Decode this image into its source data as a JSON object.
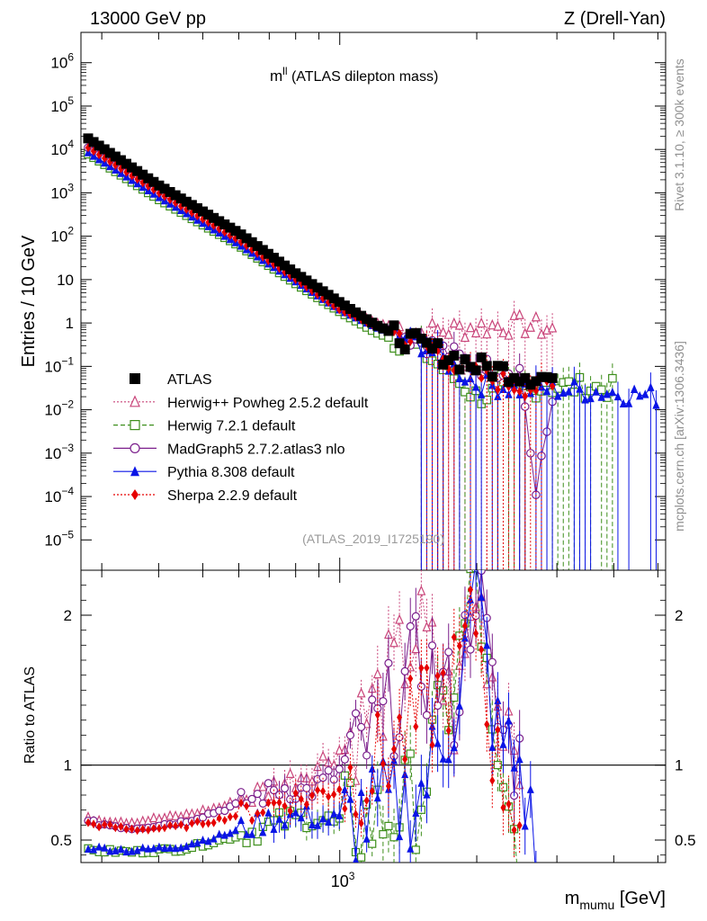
{
  "header": {
    "left": "13000 GeV pp",
    "right": "Z (Drell-Yan)"
  },
  "side_text": {
    "rivet": "Rivet 3.1.10, ≥ 300k events",
    "mcplots": "mcplots.cern.ch [arXiv:1306.3436]"
  },
  "analysis_id": "(ATLAS_2019_I1725190)",
  "chart_data": [
    {
      "panel": "main",
      "type": "scatter",
      "title_main": "m",
      "title_sup": "ll",
      "title_rest": " (ATLAS dilepton mass)",
      "ylabel": "Entries / 10 GeV",
      "yscale": "log",
      "ylim": [
        2e-06,
        5000000.0
      ],
      "xscale": "log",
      "xlim": [
        270,
        5200
      ],
      "yticks": [
        {
          "v": 1000000.0,
          "m": "10",
          "e": "6"
        },
        {
          "v": 100000.0,
          "m": "10",
          "e": "5"
        },
        {
          "v": 10000.0,
          "m": "10",
          "e": "4"
        },
        {
          "v": 1000.0,
          "m": "10",
          "e": "3"
        },
        {
          "v": 100.0,
          "m": "10",
          "e": "2"
        },
        {
          "v": 10,
          "m": "10",
          "e": ""
        },
        {
          "v": 1,
          "m": "1",
          "e": ""
        },
        {
          "v": 0.1,
          "m": "10",
          "e": "−1"
        },
        {
          "v": 0.01,
          "m": "10",
          "e": "−2"
        },
        {
          "v": 0.001,
          "m": "10",
          "e": "−3"
        },
        {
          "v": 0.0001,
          "m": "10",
          "e": "−4"
        },
        {
          "v": 1e-05,
          "m": "10",
          "e": "−5"
        }
      ],
      "legend": [
        {
          "label": "ATLAS",
          "color": "#000000",
          "marker": "square",
          "style": "none"
        },
        {
          "label": "Herwig++ Powheg 2.5.2 default",
          "color": "#c9457a",
          "marker": "triangle-open",
          "style": "dotted"
        },
        {
          "label": "Herwig 7.2.1 default",
          "color": "#3d8e1b",
          "marker": "square-open",
          "style": "dashed"
        },
        {
          "label": "MadGraph5 2.7.2.atlas3 nlo",
          "color": "#7b1f8c",
          "marker": "circle-open",
          "style": "solid"
        },
        {
          "label": "Pythia 8.308 default",
          "color": "#0a14e6",
          "marker": "triangle",
          "style": "solid"
        },
        {
          "label": "Sherpa 2.2.9 default",
          "color": "#e60000",
          "marker": "diamond",
          "style": "dotted"
        }
      ],
      "series": [
        {
          "name": "ATLAS",
          "x": [
            280,
            400,
            600,
            800,
            1000,
            1200,
            1500,
            2000,
            3000
          ],
          "y": [
            18000,
            1500,
            120,
            14,
            3,
            0.9,
            0.3,
            0.1,
            0.05
          ]
        },
        {
          "name": "Herwig++ Powheg 2.5.2 default",
          "x": [
            280,
            400,
            600,
            800,
            1000,
            1200,
            1500,
            2000,
            2500,
            3000
          ],
          "y": [
            11000,
            1100,
            100,
            12,
            2.5,
            1.0,
            0.6,
            0.8,
            0.9,
            0.7
          ]
        },
        {
          "name": "Herwig 7.2.1 default",
          "x": [
            280,
            400,
            600,
            800,
            1000,
            1200,
            1500,
            2000,
            2500,
            3000,
            4000
          ],
          "y": [
            7800,
            700,
            60,
            8,
            1.8,
            0.6,
            0.25,
            0.02,
            0.03,
            0.035,
            0.03
          ]
        },
        {
          "name": "MadGraph5 2.7.2.atlas3 nlo",
          "x": [
            280,
            400,
            600,
            800,
            1000,
            1200,
            1500,
            2000,
            2500,
            2700,
            3000
          ],
          "y": [
            11000,
            1000,
            85,
            11,
            2.2,
            0.9,
            0.4,
            0.1,
            0.08,
            0.0001,
            0.07
          ]
        },
        {
          "name": "Pythia 8.308 default",
          "x": [
            280,
            400,
            600,
            800,
            1000,
            1200,
            1500,
            2000,
            2500,
            3000,
            4000,
            5000
          ],
          "y": [
            8500,
            800,
            65,
            9,
            2.0,
            0.8,
            0.35,
            0.04,
            0.03,
            0.03,
            0.025,
            0.02
          ]
        },
        {
          "name": "Sherpa 2.2.9 default",
          "x": [
            280,
            400,
            600,
            800,
            1000,
            1200,
            1500,
            2000,
            2500,
            3000
          ],
          "y": [
            11000,
            1000,
            80,
            10,
            2.0,
            0.85,
            0.35,
            0.06,
            0.035,
            0.03
          ]
        }
      ]
    },
    {
      "panel": "ratio",
      "type": "line",
      "ylabel": "Ratio to ATLAS",
      "ylim": [
        0.35,
        2.3
      ],
      "reference": 1,
      "yticks": [
        {
          "v": 0.5,
          "t": "0.5"
        },
        {
          "v": 1,
          "t": "1"
        },
        {
          "v": 2,
          "t": "2"
        }
      ],
      "xlabel_main": "m",
      "xlabel_sub": "mumu",
      "xlabel_rest": " [GeV]",
      "xtick_major": {
        "v": 1000,
        "m": "10",
        "e": "3"
      },
      "series": [
        {
          "name": "Herwig++ Powheg 2.5.2 default",
          "x": [
            280,
            350,
            450,
            550,
            650,
            750,
            850,
            1000,
            1200,
            1500,
            1800,
            2000,
            2200,
            2500
          ],
          "y": [
            0.64,
            0.62,
            0.66,
            0.72,
            0.8,
            0.88,
            0.95,
            1.1,
            1.4,
            1.9,
            1.3,
            2.2,
            1.5,
            1.2
          ]
        },
        {
          "name": "Herwig 7.2.1 default",
          "x": [
            280,
            350,
            450,
            550,
            650,
            750,
            850,
            1000,
            1200,
            1500,
            1800,
            2000,
            2200,
            2500
          ],
          "y": [
            0.43,
            0.42,
            0.44,
            0.5,
            0.56,
            0.62,
            0.66,
            0.6,
            0.62,
            0.8,
            1.6,
            2.3,
            0.8,
            0.4
          ]
        },
        {
          "name": "MadGraph5 2.7.2.atlas3 nlo",
          "x": [
            280,
            350,
            450,
            550,
            650,
            750,
            850,
            1000,
            1200,
            1500,
            1800,
            2000,
            2200,
            2500
          ],
          "y": [
            0.62,
            0.58,
            0.62,
            0.7,
            0.78,
            0.85,
            0.82,
            0.95,
            1.2,
            1.7,
            1.4,
            2.3,
            1.3,
            1.0
          ]
        },
        {
          "name": "Pythia 8.308 default",
          "x": [
            280,
            350,
            450,
            550,
            650,
            750,
            850,
            1000,
            1200,
            1500,
            1800,
            2000,
            2200,
            2500,
            2700
          ],
          "y": [
            0.45,
            0.43,
            0.46,
            0.53,
            0.6,
            0.66,
            0.66,
            0.62,
            0.68,
            0.8,
            1.4,
            2.2,
            1.2,
            0.98,
            0.38
          ]
        },
        {
          "name": "Sherpa 2.2.9 default",
          "x": [
            280,
            350,
            450,
            550,
            650,
            750,
            850,
            1000,
            1200,
            1500,
            1800,
            2000,
            2200,
            2500
          ],
          "y": [
            0.61,
            0.57,
            0.59,
            0.64,
            0.7,
            0.76,
            0.78,
            0.86,
            1.0,
            1.3,
            1.6,
            2.0,
            1.0,
            0.7
          ]
        }
      ]
    }
  ]
}
